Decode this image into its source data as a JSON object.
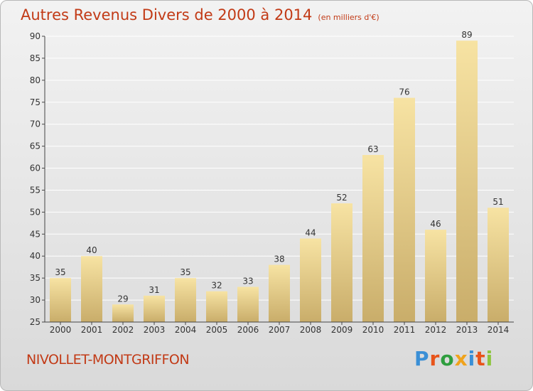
{
  "header": {
    "title": "Autres Revenus Divers de 2000 à 2014",
    "unit": "(en milliers d'€)"
  },
  "footer": {
    "commune": "NIVOLLET-MONTGRIFFON",
    "logo_text": "Proxiti",
    "logo_colors": [
      "#3a8fd6",
      "#e8541a",
      "#2e9e3e",
      "#f0a31c",
      "#3a8fd6",
      "#e8541a",
      "#8dc63f"
    ]
  },
  "colors": {
    "title": "#c23a16",
    "bar_light": "#f7e3a3",
    "bar_dark": "#c9ad6a",
    "axis": "#444444",
    "grid": "#ffffff"
  },
  "chart_data": {
    "type": "bar",
    "categories": [
      "2000",
      "2001",
      "2002",
      "2003",
      "2004",
      "2005",
      "2006",
      "2007",
      "2008",
      "2009",
      "2010",
      "2011",
      "2012",
      "2013",
      "2014"
    ],
    "values": [
      35,
      40,
      29,
      31,
      35,
      32,
      33,
      38,
      44,
      52,
      63,
      76,
      46,
      89,
      51
    ],
    "title": "Autres Revenus Divers de 2000 à 2014",
    "subtitle": "(en milliers d'€)",
    "ylim": [
      25,
      90
    ],
    "yticks": [
      25,
      30,
      35,
      40,
      45,
      50,
      55,
      60,
      65,
      70,
      75,
      80,
      85,
      90
    ],
    "grid": true,
    "data_labels": true
  }
}
